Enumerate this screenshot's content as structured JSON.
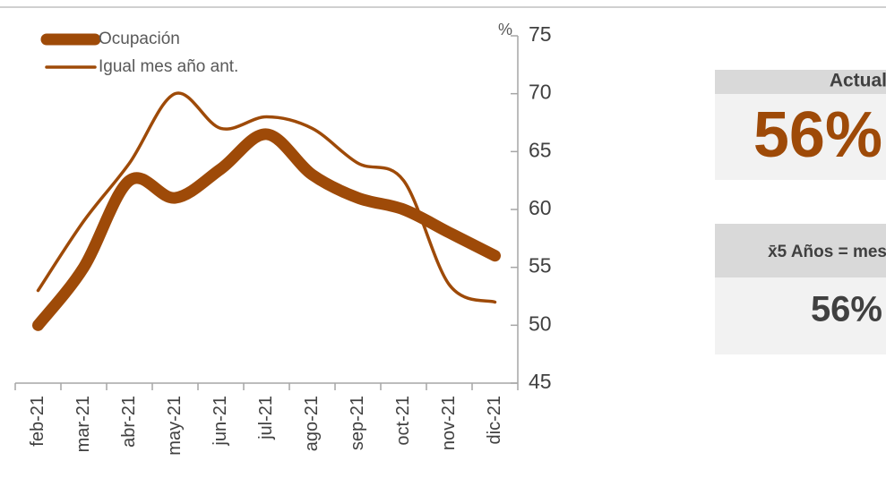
{
  "chart_data": {
    "type": "line",
    "categories": [
      "feb-21",
      "mar-21",
      "abr-21",
      "may-21",
      "jun-21",
      "jul-21",
      "ago-21",
      "sep-21",
      "oct-21",
      "nov-21",
      "dic-21"
    ],
    "series": [
      {
        "name": "Ocupación",
        "color": "#9e4a08",
        "values": [
          50,
          55,
          62.5,
          61,
          63.5,
          66.5,
          63,
          61,
          60,
          58,
          56
        ]
      },
      {
        "name": "Igual mes año ant.",
        "color": "#9e4a08",
        "values": [
          53,
          59,
          64,
          70,
          67,
          68,
          67,
          64,
          62.5,
          53.5,
          52
        ]
      }
    ],
    "y_axis_label": "%",
    "ylim": [
      45,
      75
    ],
    "yticks": [
      45,
      50,
      55,
      60,
      65,
      70,
      75
    ],
    "y_axis_side": "right"
  },
  "panels": [
    {
      "title": "Actual",
      "value": "56%"
    },
    {
      "title": "x̄5 Años = mes",
      "value": "56%"
    }
  ]
}
